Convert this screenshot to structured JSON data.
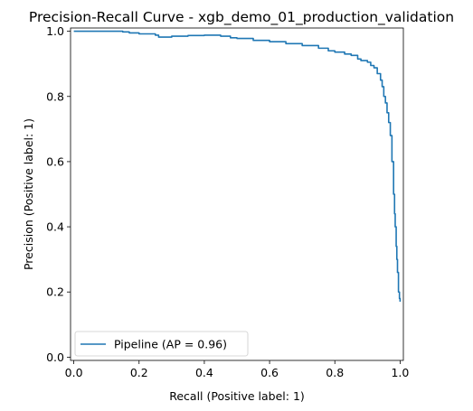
{
  "chart_data": {
    "type": "line",
    "title": "Precision-Recall Curve - xgb_demo_01_production_validation",
    "xlabel": "Recall (Positive label: 1)",
    "ylabel": "Precision (Positive label: 1)",
    "xlim": [
      -0.01,
      1.01
    ],
    "ylim": [
      -0.01,
      1.01
    ],
    "xticks": [
      0.0,
      0.2,
      0.4,
      0.6,
      0.8,
      1.0
    ],
    "yticks": [
      0.0,
      0.2,
      0.4,
      0.6,
      0.8,
      1.0
    ],
    "xtick_labels": [
      "0.0",
      "0.2",
      "0.4",
      "0.6",
      "0.8",
      "1.0"
    ],
    "ytick_labels": [
      "0.0",
      "0.2",
      "0.4",
      "0.6",
      "0.8",
      "1.0"
    ],
    "grid": false,
    "legend_position": "lower-left",
    "series": [
      {
        "name": "Pipeline (AP = 0.96)",
        "color": "#1f77b4",
        "x": [
          0.0,
          0.05,
          0.1,
          0.15,
          0.17,
          0.2,
          0.25,
          0.26,
          0.3,
          0.35,
          0.4,
          0.45,
          0.48,
          0.5,
          0.55,
          0.6,
          0.65,
          0.7,
          0.75,
          0.78,
          0.8,
          0.83,
          0.85,
          0.87,
          0.88,
          0.9,
          0.91,
          0.92,
          0.93,
          0.94,
          0.945,
          0.95,
          0.955,
          0.96,
          0.965,
          0.97,
          0.975,
          0.98,
          0.983,
          0.985,
          0.988,
          0.99,
          0.992,
          0.995,
          0.998,
          1.0
        ],
        "y": [
          1.0,
          1.0,
          1.0,
          0.998,
          0.995,
          0.992,
          0.988,
          0.982,
          0.985,
          0.987,
          0.988,
          0.985,
          0.98,
          0.978,
          0.972,
          0.968,
          0.962,
          0.956,
          0.948,
          0.94,
          0.936,
          0.93,
          0.926,
          0.915,
          0.91,
          0.905,
          0.895,
          0.888,
          0.87,
          0.85,
          0.83,
          0.8,
          0.78,
          0.75,
          0.72,
          0.68,
          0.6,
          0.5,
          0.44,
          0.4,
          0.34,
          0.3,
          0.26,
          0.2,
          0.18,
          0.17
        ]
      }
    ]
  }
}
